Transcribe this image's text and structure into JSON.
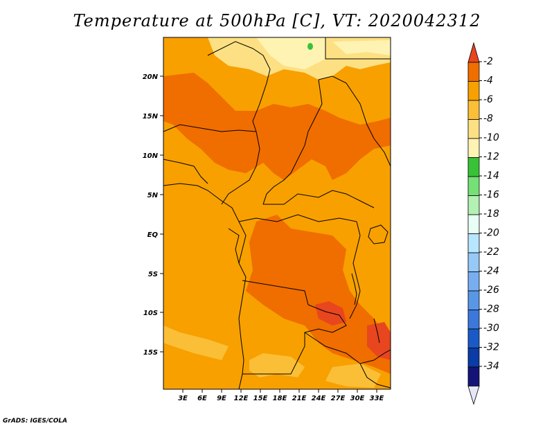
{
  "title": "Temperature at 500hPa [C], VT: 2020042312",
  "credit": "GrADS: IGES/COLA",
  "map": {
    "lat_ticks": [
      "20N",
      "15N",
      "10N",
      "5N",
      "EQ",
      "5S",
      "10S",
      "15S"
    ],
    "lon_ticks": [
      "3E",
      "6E",
      "9E",
      "12E",
      "15E",
      "18E",
      "21E",
      "24E",
      "27E",
      "30E",
      "33E"
    ]
  },
  "colorbar": {
    "levels": [
      "-2",
      "-4",
      "-6",
      "-8",
      "-10",
      "-12",
      "-14",
      "-16",
      "-18",
      "-20",
      "-22",
      "-24",
      "-26",
      "-28",
      "-30",
      "-32",
      "-34"
    ],
    "colors": [
      "#e8461e",
      "#f06d00",
      "#f7a000",
      "#fbbf37",
      "#fde083",
      "#fff3b3",
      "#38c238",
      "#75e075",
      "#b3f0b3",
      "#e8fff5",
      "#b7e6ff",
      "#96c8f8",
      "#78aef0",
      "#5896e6",
      "#3c78dc",
      "#1a5ac8",
      "#0a3ca8",
      "#141478"
    ],
    "lower_tip_color": "#e6e6f8"
  }
}
